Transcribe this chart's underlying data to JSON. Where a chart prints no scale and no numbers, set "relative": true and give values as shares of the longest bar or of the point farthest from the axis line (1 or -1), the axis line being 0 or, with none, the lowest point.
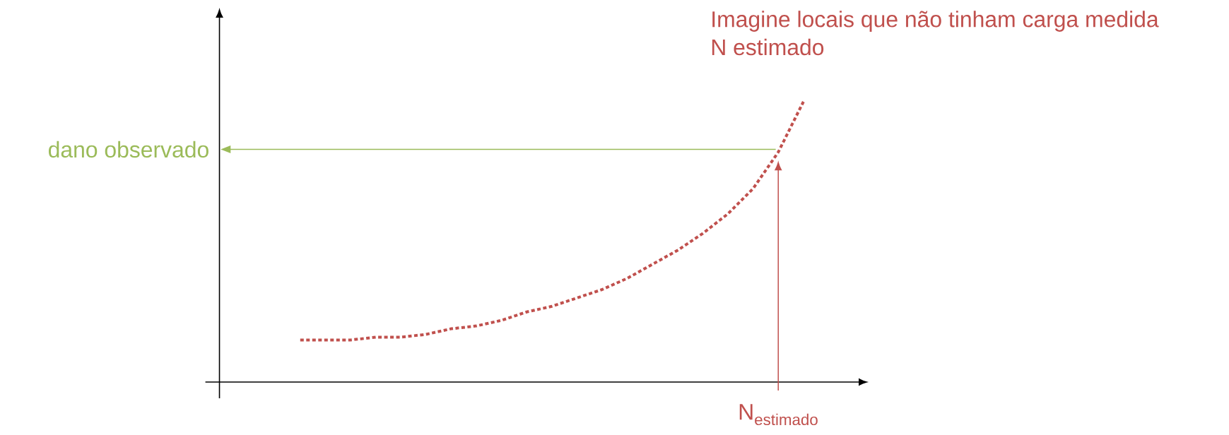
{
  "chart_data": {
    "type": "line",
    "title": "Imagine locais que não tinham carga medida",
    "subtitle": "N estimado",
    "relative": true,
    "line_style": "dotted",
    "marker": "none",
    "categories": [
      null,
      null,
      null,
      null,
      null,
      null,
      null,
      null,
      null,
      null,
      null,
      null,
      null,
      null,
      null,
      null,
      null,
      null,
      null,
      null,
      null
    ],
    "series": [
      {
        "color": "#c0504d",
        "values": [
          0.15,
          0.15,
          0.15,
          0.16,
          0.16,
          0.17,
          0.19,
          0.2,
          0.22,
          0.25,
          0.27,
          0.3,
          0.33,
          0.37,
          0.42,
          0.47,
          0.53,
          0.6,
          0.69,
          0.82,
          1
        ]
      }
    ],
    "annotations": [
      "N$_{estimado}$"
    ],
    "ref_lines": [
      {
        "axis": "y",
        "value": 0.83,
        "label": "dano observado",
        "color": "#9bbb59"
      }
    ]
  }
}
